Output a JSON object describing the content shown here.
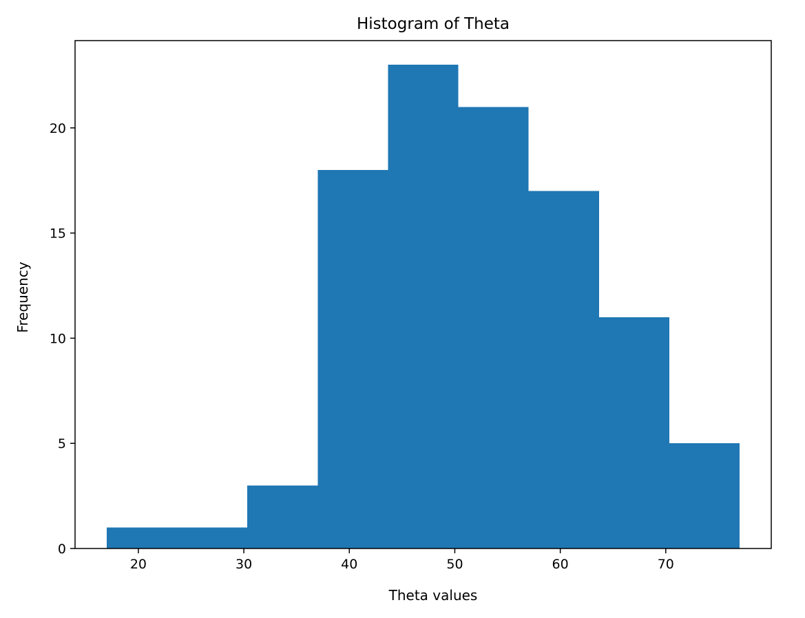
{
  "chart_data": {
    "type": "bar",
    "title": "Histogram of Theta",
    "xlabel": "Theta values",
    "ylabel": "Frequency",
    "bin_edges": [
      17,
      23.67,
      30.33,
      37,
      43.67,
      50.33,
      57,
      63.67,
      70.33,
      77
    ],
    "values": [
      1,
      1,
      3,
      18,
      23,
      21,
      17,
      11,
      5
    ],
    "xlim": [
      14,
      80
    ],
    "ylim": [
      0,
      24.15
    ],
    "xticks": [
      20,
      30,
      40,
      50,
      60,
      70
    ],
    "yticks": [
      0,
      5,
      10,
      15,
      20
    ],
    "bar_color": "#1f77b4",
    "grid": false,
    "legend": "none"
  }
}
